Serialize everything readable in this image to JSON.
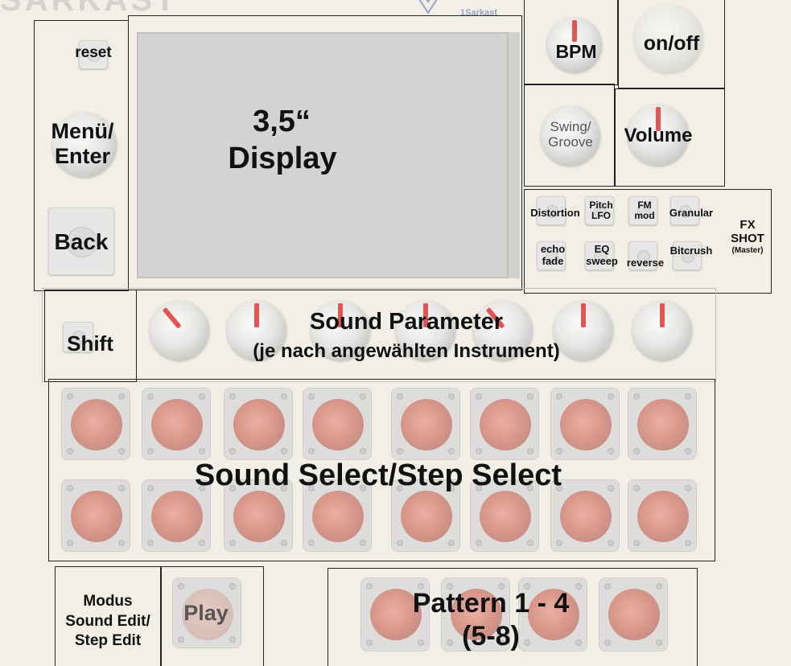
{
  "header": {
    "logo_small": "1Sarkast"
  },
  "left_panel": {
    "reset": "reset",
    "menu_line1": "Menü/",
    "menu_line2": "Enter",
    "back": "Back"
  },
  "display": {
    "line1": "3,5“",
    "line2": "Display"
  },
  "right_controls": {
    "bpm": "BPM",
    "on_off": "on/off",
    "swing_line1": "Swing/",
    "swing_line2": "Groove",
    "volume": "Volume"
  },
  "fx": {
    "distortion": "Distortion",
    "pitch_lfo_1": "Pitch",
    "pitch_lfo_2": "LFO",
    "fm_mod_1": "FM",
    "fm_mod_2": "mod",
    "granular": "Granular",
    "echo_fade_1": "echo",
    "echo_fade_2": "fade",
    "eq_sweep_1": "EQ",
    "eq_sweep_2": "sweep",
    "reverse": "reverse",
    "bitcrush": "Bitcrush",
    "shot_1": "FX",
    "shot_2": "SHOT",
    "shot_3": "(Master)"
  },
  "parameters": {
    "shift": "Shift",
    "title": "Sound Parameter",
    "subtitle": "(je nach angewählten Instrument)"
  },
  "pads": {
    "label": "Sound Select/Step Select"
  },
  "bottom": {
    "modus_1": "Modus",
    "modus_2": "Sound Edit/",
    "modus_3": "Step Edit",
    "play": "Play",
    "pattern_1": "Pattern 1 - 4",
    "pattern_2": "(5-8)"
  }
}
